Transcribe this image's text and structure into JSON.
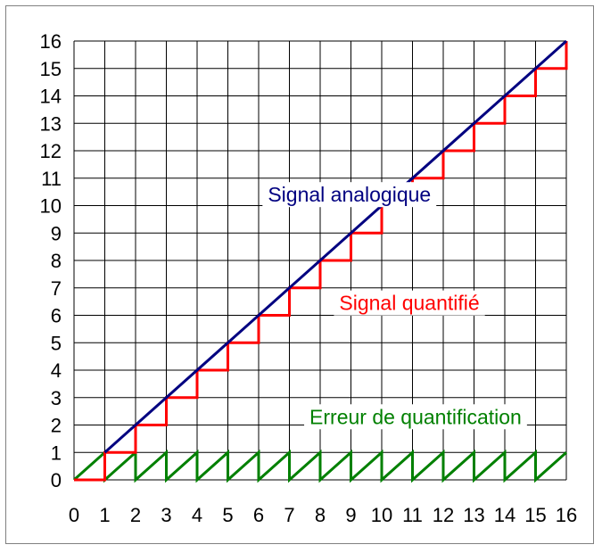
{
  "chart_data": {
    "type": "line",
    "title": "",
    "xlabel": "",
    "ylabel": "",
    "xlim": [
      0,
      16
    ],
    "ylim": [
      0,
      16
    ],
    "x_ticks": [
      "0",
      "1",
      "2",
      "3",
      "4",
      "5",
      "6",
      "7",
      "8",
      "9",
      "10",
      "11",
      "12",
      "13",
      "14",
      "15",
      "16"
    ],
    "y_ticks": [
      "0",
      "1",
      "2",
      "3",
      "4",
      "5",
      "6",
      "7",
      "8",
      "9",
      "10",
      "11",
      "12",
      "13",
      "14",
      "15",
      "16"
    ],
    "grid": true,
    "legend": "none",
    "series": [
      {
        "name": "Signal analogique",
        "color": "#000080",
        "points": [
          [
            1,
            1
          ],
          [
            16,
            16
          ]
        ]
      },
      {
        "name": "Signal quantifié",
        "color": "#ff0000",
        "points": [
          [
            0,
            0
          ],
          [
            1,
            0
          ],
          [
            1,
            1
          ],
          [
            2,
            1
          ],
          [
            2,
            2
          ],
          [
            3,
            2
          ],
          [
            3,
            3
          ],
          [
            4,
            3
          ],
          [
            4,
            4
          ],
          [
            5,
            4
          ],
          [
            5,
            5
          ],
          [
            6,
            5
          ],
          [
            6,
            6
          ],
          [
            7,
            6
          ],
          [
            7,
            7
          ],
          [
            8,
            7
          ],
          [
            8,
            8
          ],
          [
            9,
            8
          ],
          [
            9,
            9
          ],
          [
            10,
            9
          ],
          [
            10,
            10
          ],
          [
            11,
            10
          ],
          [
            11,
            11
          ],
          [
            12,
            11
          ],
          [
            12,
            12
          ],
          [
            13,
            12
          ],
          [
            13,
            13
          ],
          [
            14,
            13
          ],
          [
            14,
            14
          ],
          [
            15,
            14
          ],
          [
            15,
            15
          ],
          [
            16,
            15
          ],
          [
            16,
            16
          ]
        ]
      },
      {
        "name": "Erreur de quantification",
        "color": "#008000",
        "points": [
          [
            0,
            0
          ],
          [
            1,
            1
          ],
          [
            1,
            0
          ],
          [
            2,
            1
          ],
          [
            2,
            0
          ],
          [
            3,
            1
          ],
          [
            3,
            0
          ],
          [
            4,
            1
          ],
          [
            4,
            0
          ],
          [
            5,
            1
          ],
          [
            5,
            0
          ],
          [
            6,
            1
          ],
          [
            6,
            0
          ],
          [
            7,
            1
          ],
          [
            7,
            0
          ],
          [
            8,
            1
          ],
          [
            8,
            0
          ],
          [
            9,
            1
          ],
          [
            9,
            0
          ],
          [
            10,
            1
          ],
          [
            10,
            0
          ],
          [
            11,
            1
          ],
          [
            11,
            0
          ],
          [
            12,
            1
          ],
          [
            12,
            0
          ],
          [
            13,
            1
          ],
          [
            13,
            0
          ],
          [
            14,
            1
          ],
          [
            14,
            0
          ],
          [
            15,
            1
          ],
          [
            15,
            0
          ],
          [
            16,
            1
          ]
        ]
      }
    ],
    "annotations": [
      {
        "text": "Signal analogique",
        "color": "#000080",
        "x": 8.95,
        "y": 10.4,
        "anchor": "middle"
      },
      {
        "text": "Signal quantifié",
        "color": "#ff0000",
        "x": 10.9,
        "y": 6.45,
        "anchor": "middle"
      },
      {
        "text": "Erreur de quantification",
        "color": "#008000",
        "x": 11.1,
        "y": 2.3,
        "anchor": "middle"
      }
    ]
  }
}
